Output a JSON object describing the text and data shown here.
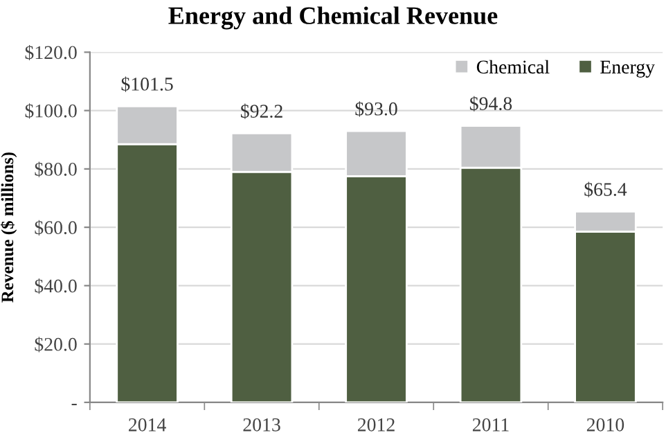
{
  "chart_data": {
    "type": "bar",
    "title": "Energy and Chemical Revenue",
    "ylabel": "Revenue ($ millions)",
    "categories": [
      "2014",
      "2013",
      "2012",
      "2011",
      "2010"
    ],
    "series": [
      {
        "name": "Energy",
        "color": "#4f5f41",
        "values": [
          88.5,
          79.0,
          77.5,
          80.4,
          58.5
        ]
      },
      {
        "name": "Chemical",
        "color": "#c6c7c9",
        "values": [
          13.0,
          13.2,
          15.5,
          14.4,
          6.9
        ]
      }
    ],
    "stacked": true,
    "totals": [
      "$101.5",
      "$92.2",
      "$93.0",
      "$94.8",
      "$65.4"
    ],
    "ylim": [
      0,
      120
    ],
    "yticks": [
      {
        "value": 0,
        "label": "-"
      },
      {
        "value": 20,
        "label": "$20.0"
      },
      {
        "value": 40,
        "label": "$40.0"
      },
      {
        "value": 60,
        "label": "$60.0"
      },
      {
        "value": 80,
        "label": "$80.0"
      },
      {
        "value": 100,
        "label": "$100.0"
      },
      {
        "value": 120,
        "label": "$120.0"
      }
    ],
    "grid": "y",
    "legend": "top right"
  }
}
